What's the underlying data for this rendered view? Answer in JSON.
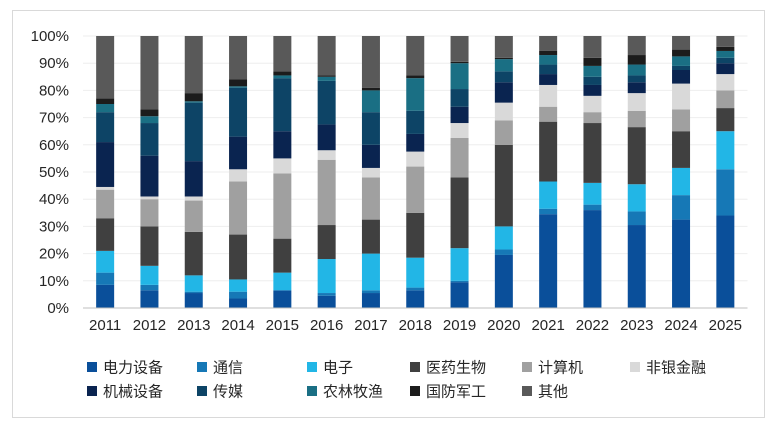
{
  "chart_data": {
    "type": "bar",
    "stacked": true,
    "percent": true,
    "title": "",
    "xlabel": "",
    "ylabel": "",
    "ylim": [
      0,
      100
    ],
    "yticks": [
      "0%",
      "10%",
      "20%",
      "30%",
      "40%",
      "50%",
      "60%",
      "70%",
      "80%",
      "90%",
      "100%"
    ],
    "categories": [
      "2011",
      "2012",
      "2013",
      "2014",
      "2015",
      "2016",
      "2017",
      "2018",
      "2019",
      "2020",
      "2021",
      "2022",
      "2023",
      "2024",
      "2025"
    ],
    "legend_position": "bottom",
    "series": [
      {
        "name": "电力设备",
        "color": "#0a4f9a",
        "values": [
          8.5,
          6.5,
          5.5,
          3.5,
          6.5,
          4.5,
          5.5,
          6.5,
          9.5,
          19.5,
          34.5,
          36.0,
          30.5,
          32.5,
          34.0
        ]
      },
      {
        "name": "通信",
        "color": "#1678b6",
        "values": [
          4.5,
          2.0,
          0.5,
          2.5,
          0.0,
          1.0,
          1.0,
          1.0,
          0.5,
          2.0,
          2.0,
          2.0,
          5.0,
          9.0,
          17.0
        ]
      },
      {
        "name": "电子",
        "color": "#22b6e6",
        "values": [
          8.0,
          7.0,
          6.0,
          4.5,
          6.5,
          12.5,
          13.5,
          11.0,
          12.0,
          8.5,
          10.0,
          8.0,
          10.0,
          10.0,
          14.0
        ]
      },
      {
        "name": "医药生物",
        "color": "#404040",
        "values": [
          12.0,
          14.5,
          16.0,
          16.5,
          12.5,
          12.5,
          12.5,
          16.5,
          26.0,
          30.0,
          22.0,
          22.0,
          21.0,
          13.5,
          8.5
        ]
      },
      {
        "name": "计算机",
        "color": "#a0a0a0",
        "values": [
          10.5,
          10.0,
          11.5,
          19.5,
          24.0,
          24.0,
          15.5,
          17.0,
          14.5,
          9.0,
          5.5,
          4.0,
          6.0,
          8.0,
          6.5
        ]
      },
      {
        "name": "非银金融",
        "color": "#d9d9d9",
        "values": [
          1.0,
          1.0,
          1.5,
          4.5,
          5.5,
          3.5,
          3.5,
          5.5,
          5.5,
          6.5,
          8.0,
          6.0,
          6.5,
          9.5,
          6.0
        ]
      },
      {
        "name": "机械设备",
        "color": "#0a2450",
        "values": [
          16.5,
          15.0,
          13.0,
          12.0,
          10.0,
          9.5,
          8.5,
          6.5,
          6.0,
          7.5,
          4.0,
          4.0,
          4.0,
          5.0,
          4.0
        ]
      },
      {
        "name": "传媒",
        "color": "#0d4466",
        "values": [
          11.0,
          12.0,
          21.5,
          18.0,
          19.5,
          16.0,
          12.0,
          8.5,
          6.5,
          4.0,
          3.5,
          3.0,
          2.5,
          1.5,
          2.0
        ]
      },
      {
        "name": "农林牧渔",
        "color": "#1a6f84",
        "values": [
          3.0,
          2.5,
          0.5,
          0.5,
          1.0,
          1.5,
          8.0,
          12.0,
          9.5,
          4.5,
          3.5,
          4.0,
          4.0,
          3.5,
          2.5
        ]
      },
      {
        "name": "国防军工",
        "color": "#1c1c1c",
        "values": [
          2.0,
          2.5,
          3.0,
          2.5,
          1.5,
          0.5,
          1.0,
          1.0,
          0.5,
          0.5,
          1.5,
          3.0,
          3.5,
          2.5,
          1.5
        ]
      },
      {
        "name": "其他",
        "color": "#595959",
        "values": [
          23.0,
          27.0,
          21.0,
          16.0,
          13.0,
          14.5,
          19.0,
          14.5,
          9.5,
          8.0,
          5.5,
          8.0,
          7.0,
          5.0,
          4.0
        ]
      }
    ]
  }
}
